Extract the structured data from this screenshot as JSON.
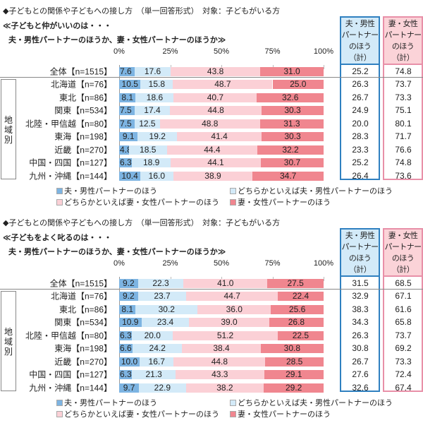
{
  "heading": "◆子どもとの関係や子どもへの接し方　（単一回答形式）　対象：子どもがいる方",
  "region_label": "地域別",
  "sum_headers": {
    "male": [
      "夫・男性",
      "パートナー",
      "のほう",
      "（計）"
    ],
    "female": [
      "妻・女性",
      "パートナー",
      "のほう",
      "（計）"
    ]
  },
  "colors": {
    "male": "#7db4e2",
    "somewhat_male": "#d3eaf8",
    "somewhat_female": "#fbd0d6",
    "female": "#f0868f"
  },
  "chart_data": [
    {
      "type": "bar",
      "stacked": true,
      "orientation": "horizontal",
      "title_line1": "≪子どもと仲がいいのは・・・",
      "title_line2": "夫・男性パートナーのほうか、妻・女性パートナーのほうか≫",
      "ticks": [
        "0%",
        "25%",
        "50%",
        "75%",
        "100%"
      ],
      "xlim": [
        0,
        100
      ],
      "categories": [
        "全体【n=1515】",
        "北海道【n=76】",
        "東北【n=86】",
        "関東【n=534】",
        "北陸・甲信越【n=80】",
        "東海【n=198】",
        "近畿【n=270】",
        "中国・四国【n=127】",
        "九州・沖縄【n=144】"
      ],
      "series": [
        {
          "name": "夫・男性パートナーのほう",
          "values": [
            7.6,
            10.5,
            8.1,
            7.5,
            7.5,
            9.1,
            4.8,
            6.3,
            10.4
          ]
        },
        {
          "name": "どちらかといえば夫・男性パートナーのほう",
          "values": [
            17.6,
            15.8,
            18.6,
            17.4,
            12.5,
            19.2,
            18.5,
            18.9,
            16.0
          ]
        },
        {
          "name": "どちらかといえば妻・女性パートナーのほう",
          "values": [
            43.8,
            48.7,
            40.7,
            44.8,
            48.8,
            41.4,
            44.4,
            44.1,
            38.9
          ]
        },
        {
          "name": "妻・女性パートナーのほう",
          "values": [
            31.0,
            25.0,
            32.6,
            30.3,
            31.3,
            30.3,
            32.2,
            30.7,
            34.7
          ]
        }
      ],
      "male_total": [
        "25.2",
        "26.3",
        "26.7",
        "24.9",
        "20.0",
        "28.3",
        "23.3",
        "25.2",
        "26.4"
      ],
      "female_total": [
        "74.8",
        "73.7",
        "73.3",
        "75.1",
        "80.1",
        "71.7",
        "76.6",
        "74.8",
        "73.6"
      ]
    },
    {
      "type": "bar",
      "stacked": true,
      "orientation": "horizontal",
      "title_line1": "≪子どもをよく叱るのは・・・",
      "title_line2": "夫・男性パートナーのほうか、妻・女性パートナーのほうか≫",
      "ticks": [
        "0%",
        "25%",
        "50%",
        "75%",
        "100%"
      ],
      "xlim": [
        0,
        100
      ],
      "categories": [
        "全体【n=1515】",
        "北海道【n=76】",
        "東北【n=86】",
        "関東【n=534】",
        "北陸・甲信越【n=80】",
        "東海【n=198】",
        "近畿【n=270】",
        "中国・四国【n=127】",
        "九州・沖縄【n=144】"
      ],
      "series": [
        {
          "name": "夫・男性パートナーのほう",
          "values": [
            9.2,
            9.2,
            8.1,
            10.9,
            6.3,
            6.6,
            10.0,
            6.3,
            9.7
          ]
        },
        {
          "name": "どちらかといえば夫・男性パートナーのほう",
          "values": [
            22.3,
            23.7,
            30.2,
            23.4,
            20.0,
            24.2,
            16.7,
            21.3,
            22.9
          ]
        },
        {
          "name": "どちらかといえば妻・女性パートナーのほう",
          "values": [
            41.0,
            44.7,
            36.0,
            39.0,
            51.2,
            38.4,
            44.8,
            43.3,
            38.2
          ]
        },
        {
          "name": "妻・女性パートナーのほう",
          "values": [
            27.5,
            22.4,
            25.6,
            26.8,
            22.5,
            30.8,
            28.5,
            29.1,
            29.2
          ]
        }
      ],
      "male_total": [
        "31.5",
        "32.9",
        "38.3",
        "34.3",
        "26.3",
        "30.8",
        "26.7",
        "27.6",
        "32.6"
      ],
      "female_total": [
        "68.5",
        "67.1",
        "61.6",
        "65.8",
        "73.7",
        "69.2",
        "73.3",
        "72.4",
        "67.4"
      ]
    }
  ]
}
